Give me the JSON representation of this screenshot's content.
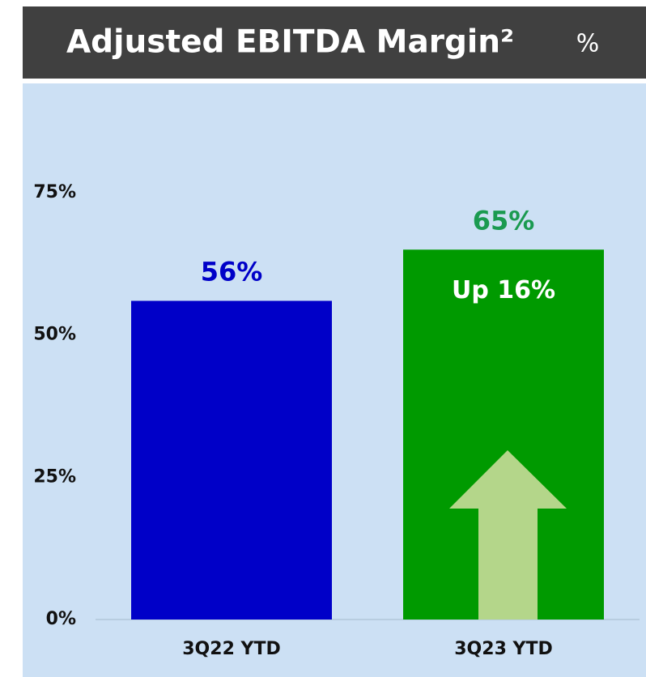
{
  "chart_data": {
    "type": "bar",
    "title": "Adjusted EBITDA Margin²",
    "unit": "%",
    "categories": [
      "3Q22 YTD",
      "3Q23 YTD"
    ],
    "values": [
      56,
      65
    ],
    "value_labels": [
      "56%",
      "65%"
    ],
    "colors": [
      "#0000c8",
      "#009a00"
    ],
    "label_colors": [
      "#0000c8",
      "#1a9a50"
    ],
    "annotation": "Up 16%",
    "ylim": [
      0,
      75
    ],
    "yticks": [
      {
        "value": 0,
        "label": "0%"
      },
      {
        "value": 25,
        "label": "25%"
      },
      {
        "value": 50,
        "label": "50%"
      },
      {
        "value": 75,
        "label": "75%"
      }
    ],
    "grid": false
  }
}
